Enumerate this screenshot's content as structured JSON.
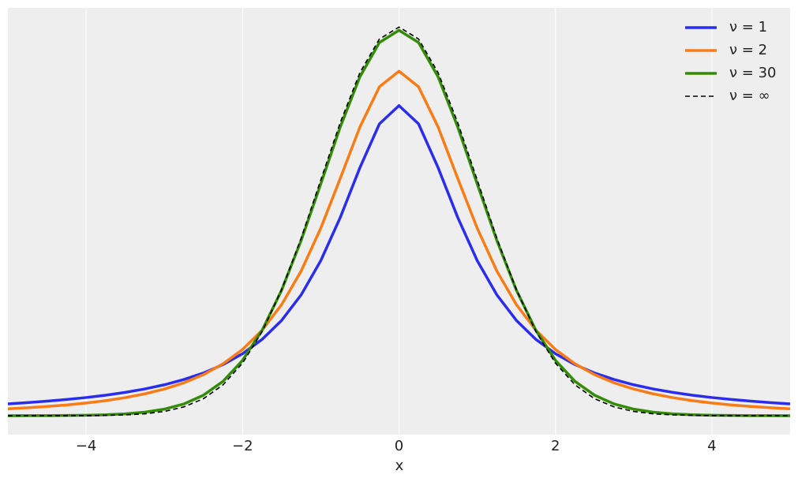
{
  "chart_data": {
    "type": "line",
    "x_label": "x",
    "x": [
      -5,
      -4.75,
      -4.5,
      -4.25,
      -4,
      -3.75,
      -3.5,
      -3.25,
      -3,
      -2.75,
      -2.5,
      -2.25,
      -2,
      -1.75,
      -1.5,
      -1.25,
      -1,
      -0.75,
      -0.5,
      -0.25,
      0,
      0.25,
      0.5,
      0.75,
      1,
      1.25,
      1.5,
      1.75,
      2,
      2.25,
      2.5,
      2.75,
      3,
      3.25,
      3.5,
      3.75,
      4,
      4.25,
      4.5,
      4.75,
      5
    ],
    "series": [
      {
        "name": "ν = 1",
        "color": "#2a2eec",
        "linestyle": "solid",
        "values": [
          0.0122,
          0.0135,
          0.015,
          0.0167,
          0.0187,
          0.0211,
          0.024,
          0.0275,
          0.0318,
          0.0372,
          0.0439,
          0.0525,
          0.0637,
          0.0784,
          0.0979,
          0.1242,
          0.1592,
          0.2037,
          0.2546,
          0.2996,
          0.3183,
          0.2996,
          0.2546,
          0.2037,
          0.1592,
          0.1242,
          0.0979,
          0.0784,
          0.0637,
          0.0525,
          0.0439,
          0.0372,
          0.0318,
          0.0275,
          0.024,
          0.0211,
          0.0187,
          0.0167,
          0.015,
          0.0135,
          0.0122
        ]
      },
      {
        "name": "ν = 2",
        "color": "#fa7c17",
        "linestyle": "solid",
        "values": [
          0.0071,
          0.0082,
          0.0095,
          0.0111,
          0.0131,
          0.0155,
          0.0186,
          0.0225,
          0.0274,
          0.0338,
          0.0422,
          0.0533,
          0.068,
          0.0878,
          0.1141,
          0.1487,
          0.1925,
          0.2438,
          0.2963,
          0.3376,
          0.3536,
          0.3376,
          0.2963,
          0.2438,
          0.1925,
          0.1487,
          0.1141,
          0.0878,
          0.068,
          0.0533,
          0.0422,
          0.0338,
          0.0274,
          0.0225,
          0.0186,
          0.0155,
          0.0131,
          0.0111,
          0.0095,
          0.0082,
          0.0071
        ]
      },
      {
        "name": "ν = 30",
        "color": "#328c06",
        "linestyle": "solid",
        "values": [
          0,
          0.0001,
          0.0001,
          0.0003,
          0.0005,
          0.001,
          0.002,
          0.0037,
          0.0068,
          0.0121,
          0.0211,
          0.0353,
          0.0569,
          0.0877,
          0.129,
          0.1801,
          0.238,
          0.2966,
          0.3479,
          0.3831,
          0.3956,
          0.3831,
          0.3479,
          0.2966,
          0.238,
          0.1801,
          0.129,
          0.0877,
          0.0569,
          0.0353,
          0.0211,
          0.0121,
          0.0068,
          0.0037,
          0.002,
          0.001,
          0.0005,
          0.0003,
          0.0001,
          0.0001,
          0
        ]
      },
      {
        "name": "ν = ∞",
        "color": "#000000",
        "linestyle": "dashed",
        "values": [
          0,
          0,
          0,
          0,
          0.0001,
          0.0004,
          0.0009,
          0.002,
          0.0044,
          0.0091,
          0.0175,
          0.0317,
          0.054,
          0.0863,
          0.1295,
          0.1826,
          0.242,
          0.3011,
          0.3521,
          0.3867,
          0.3989,
          0.3867,
          0.3521,
          0.3011,
          0.242,
          0.1826,
          0.1295,
          0.0863,
          0.054,
          0.0317,
          0.0175,
          0.0091,
          0.0044,
          0.002,
          0.0009,
          0.0004,
          0.0001,
          0,
          0,
          0,
          0
        ]
      }
    ],
    "xlim": [
      -5,
      5
    ],
    "ylim": [
      -0.0194,
      0.4186
    ],
    "xticks": [
      {
        "value": -4,
        "label": "−4"
      },
      {
        "value": -2,
        "label": "−2"
      },
      0,
      2,
      4
    ],
    "grid": "x",
    "legend": "upper right"
  }
}
